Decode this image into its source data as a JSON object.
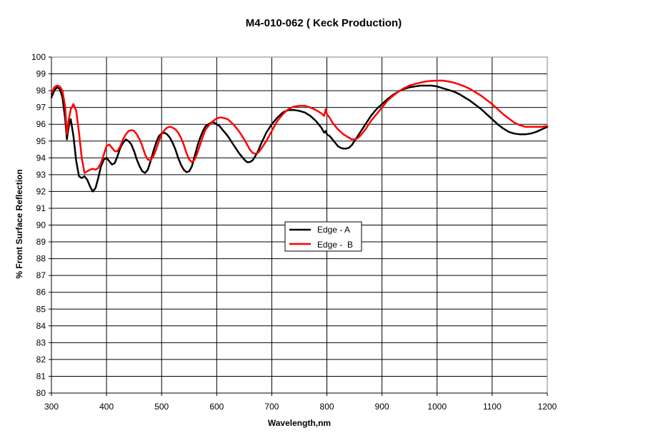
{
  "chart_data": {
    "type": "line",
    "title": "M4-010-062 ( Keck Production)",
    "xlabel": "Wavelength,nm",
    "ylabel": "% Front Surface Reflection",
    "xlim": [
      300,
      1200
    ],
    "ylim": [
      80,
      100
    ],
    "x_ticks": [
      "300",
      "400",
      "500",
      "600",
      "700",
      "800",
      "900",
      "1000",
      "1100",
      "1200"
    ],
    "y_ticks": [
      "80",
      "81",
      "82",
      "83",
      "84",
      "85",
      "86",
      "87",
      "88",
      "89",
      "90",
      "91",
      "92",
      "93",
      "94",
      "95",
      "96",
      "97",
      "98",
      "99",
      "100"
    ],
    "grid": true,
    "legend_position": "center",
    "series": [
      {
        "name": "Edge - A",
        "color": "#000000",
        "points": [
          [
            300,
            97.6
          ],
          [
            305,
            98.0
          ],
          [
            310,
            98.2
          ],
          [
            315,
            98.1
          ],
          [
            320,
            97.6
          ],
          [
            325,
            96.3
          ],
          [
            328,
            95.1
          ],
          [
            331,
            95.8
          ],
          [
            335,
            96.3
          ],
          [
            340,
            95.3
          ],
          [
            345,
            93.8
          ],
          [
            350,
            92.9
          ],
          [
            355,
            92.8
          ],
          [
            360,
            92.9
          ],
          [
            365,
            92.7
          ],
          [
            370,
            92.3
          ],
          [
            375,
            92.0
          ],
          [
            380,
            92.2
          ],
          [
            385,
            92.8
          ],
          [
            390,
            93.5
          ],
          [
            395,
            93.9
          ],
          [
            400,
            94.0
          ],
          [
            405,
            93.8
          ],
          [
            410,
            93.6
          ],
          [
            415,
            93.7
          ],
          [
            420,
            94.1
          ],
          [
            425,
            94.6
          ],
          [
            430,
            94.9
          ],
          [
            435,
            95.1
          ],
          [
            440,
            95.0
          ],
          [
            445,
            94.8
          ],
          [
            450,
            94.4
          ],
          [
            455,
            93.9
          ],
          [
            460,
            93.5
          ],
          [
            465,
            93.2
          ],
          [
            470,
            93.1
          ],
          [
            475,
            93.3
          ],
          [
            480,
            93.8
          ],
          [
            485,
            94.4
          ],
          [
            490,
            94.9
          ],
          [
            495,
            95.3
          ],
          [
            500,
            95.45
          ],
          [
            505,
            95.5
          ],
          [
            510,
            95.4
          ],
          [
            515,
            95.2
          ],
          [
            520,
            94.9
          ],
          [
            525,
            94.5
          ],
          [
            530,
            94.0
          ],
          [
            535,
            93.6
          ],
          [
            540,
            93.3
          ],
          [
            545,
            93.15
          ],
          [
            550,
            93.2
          ],
          [
            555,
            93.5
          ],
          [
            560,
            94.1
          ],
          [
            565,
            94.7
          ],
          [
            570,
            95.2
          ],
          [
            575,
            95.6
          ],
          [
            580,
            95.9
          ],
          [
            585,
            96.0
          ],
          [
            590,
            96.1
          ],
          [
            595,
            96.1
          ],
          [
            600,
            96.0
          ],
          [
            605,
            95.9
          ],
          [
            610,
            95.7
          ],
          [
            620,
            95.3
          ],
          [
            630,
            94.8
          ],
          [
            640,
            94.3
          ],
          [
            650,
            93.9
          ],
          [
            655,
            93.75
          ],
          [
            660,
            93.75
          ],
          [
            665,
            93.85
          ],
          [
            670,
            94.1
          ],
          [
            675,
            94.4
          ],
          [
            680,
            94.8
          ],
          [
            690,
            95.5
          ],
          [
            700,
            96.0
          ],
          [
            710,
            96.4
          ],
          [
            720,
            96.7
          ],
          [
            730,
            96.85
          ],
          [
            740,
            96.85
          ],
          [
            750,
            96.8
          ],
          [
            760,
            96.7
          ],
          [
            770,
            96.5
          ],
          [
            780,
            96.2
          ],
          [
            790,
            95.8
          ],
          [
            795,
            95.5
          ],
          [
            798,
            95.6
          ],
          [
            800,
            95.4
          ],
          [
            805,
            95.3
          ],
          [
            810,
            95.1
          ],
          [
            815,
            94.9
          ],
          [
            820,
            94.7
          ],
          [
            825,
            94.6
          ],
          [
            830,
            94.55
          ],
          [
            835,
            94.55
          ],
          [
            840,
            94.6
          ],
          [
            845,
            94.75
          ],
          [
            850,
            95.0
          ],
          [
            860,
            95.5
          ],
          [
            870,
            96.0
          ],
          [
            880,
            96.5
          ],
          [
            890,
            96.9
          ],
          [
            900,
            97.2
          ],
          [
            910,
            97.5
          ],
          [
            920,
            97.75
          ],
          [
            930,
            97.95
          ],
          [
            940,
            98.1
          ],
          [
            950,
            98.2
          ],
          [
            960,
            98.25
          ],
          [
            970,
            98.3
          ],
          [
            980,
            98.3
          ],
          [
            990,
            98.3
          ],
          [
            1000,
            98.25
          ],
          [
            1010,
            98.15
          ],
          [
            1020,
            98.05
          ],
          [
            1030,
            97.95
          ],
          [
            1040,
            97.8
          ],
          [
            1050,
            97.6
          ],
          [
            1060,
            97.4
          ],
          [
            1070,
            97.15
          ],
          [
            1080,
            96.9
          ],
          [
            1090,
            96.6
          ],
          [
            1100,
            96.3
          ],
          [
            1110,
            96.0
          ],
          [
            1120,
            95.75
          ],
          [
            1130,
            95.55
          ],
          [
            1140,
            95.45
          ],
          [
            1150,
            95.4
          ],
          [
            1160,
            95.4
          ],
          [
            1170,
            95.45
          ],
          [
            1180,
            95.55
          ],
          [
            1190,
            95.7
          ],
          [
            1200,
            95.85
          ]
        ]
      },
      {
        "name": "Edge -  B",
        "color": "#ff0000",
        "points": [
          [
            300,
            97.8
          ],
          [
            305,
            98.2
          ],
          [
            310,
            98.3
          ],
          [
            315,
            98.25
          ],
          [
            320,
            98.0
          ],
          [
            325,
            97.0
          ],
          [
            328,
            95.4
          ],
          [
            331,
            96.2
          ],
          [
            335,
            96.9
          ],
          [
            340,
            97.2
          ],
          [
            345,
            96.8
          ],
          [
            350,
            95.5
          ],
          [
            355,
            94.0
          ],
          [
            360,
            93.1
          ],
          [
            365,
            93.2
          ],
          [
            370,
            93.3
          ],
          [
            375,
            93.35
          ],
          [
            380,
            93.3
          ],
          [
            385,
            93.4
          ],
          [
            390,
            93.7
          ],
          [
            395,
            94.2
          ],
          [
            400,
            94.7
          ],
          [
            405,
            94.8
          ],
          [
            410,
            94.6
          ],
          [
            415,
            94.4
          ],
          [
            420,
            94.4
          ],
          [
            425,
            94.7
          ],
          [
            430,
            95.1
          ],
          [
            435,
            95.4
          ],
          [
            440,
            95.6
          ],
          [
            445,
            95.65
          ],
          [
            450,
            95.6
          ],
          [
            455,
            95.4
          ],
          [
            460,
            95.1
          ],
          [
            465,
            94.7
          ],
          [
            470,
            94.2
          ],
          [
            475,
            93.9
          ],
          [
            480,
            93.85
          ],
          [
            485,
            94.1
          ],
          [
            490,
            94.5
          ],
          [
            495,
            95.0
          ],
          [
            500,
            95.4
          ],
          [
            505,
            95.65
          ],
          [
            510,
            95.8
          ],
          [
            515,
            95.85
          ],
          [
            520,
            95.8
          ],
          [
            525,
            95.7
          ],
          [
            530,
            95.5
          ],
          [
            535,
            95.2
          ],
          [
            540,
            94.8
          ],
          [
            545,
            94.3
          ],
          [
            550,
            93.9
          ],
          [
            555,
            93.75
          ],
          [
            560,
            93.9
          ],
          [
            565,
            94.3
          ],
          [
            570,
            94.8
          ],
          [
            575,
            95.3
          ],
          [
            580,
            95.7
          ],
          [
            590,
            96.1
          ],
          [
            600,
            96.35
          ],
          [
            605,
            96.4
          ],
          [
            610,
            96.4
          ],
          [
            615,
            96.35
          ],
          [
            620,
            96.3
          ],
          [
            630,
            96.0
          ],
          [
            640,
            95.6
          ],
          [
            650,
            95.1
          ],
          [
            660,
            94.5
          ],
          [
            665,
            94.3
          ],
          [
            670,
            94.25
          ],
          [
            675,
            94.3
          ],
          [
            680,
            94.5
          ],
          [
            690,
            95.0
          ],
          [
            700,
            95.6
          ],
          [
            710,
            96.2
          ],
          [
            720,
            96.6
          ],
          [
            730,
            96.9
          ],
          [
            740,
            97.05
          ],
          [
            750,
            97.1
          ],
          [
            760,
            97.1
          ],
          [
            770,
            97.0
          ],
          [
            780,
            96.85
          ],
          [
            790,
            96.65
          ],
          [
            795,
            96.5
          ],
          [
            798,
            96.9
          ],
          [
            800,
            96.6
          ],
          [
            805,
            96.4
          ],
          [
            810,
            96.1
          ],
          [
            815,
            95.9
          ],
          [
            820,
            95.7
          ],
          [
            830,
            95.4
          ],
          [
            840,
            95.2
          ],
          [
            845,
            95.1
          ],
          [
            850,
            95.1
          ],
          [
            855,
            95.15
          ],
          [
            860,
            95.3
          ],
          [
            870,
            95.7
          ],
          [
            880,
            96.2
          ],
          [
            890,
            96.6
          ],
          [
            900,
            97.0
          ],
          [
            910,
            97.4
          ],
          [
            920,
            97.7
          ],
          [
            930,
            97.95
          ],
          [
            940,
            98.15
          ],
          [
            950,
            98.3
          ],
          [
            960,
            98.4
          ],
          [
            970,
            98.48
          ],
          [
            980,
            98.55
          ],
          [
            990,
            98.58
          ],
          [
            1000,
            98.6
          ],
          [
            1010,
            98.6
          ],
          [
            1020,
            98.55
          ],
          [
            1030,
            98.48
          ],
          [
            1040,
            98.38
          ],
          [
            1050,
            98.25
          ],
          [
            1060,
            98.1
          ],
          [
            1070,
            97.9
          ],
          [
            1080,
            97.7
          ],
          [
            1090,
            97.45
          ],
          [
            1100,
            97.2
          ],
          [
            1110,
            96.9
          ],
          [
            1120,
            96.6
          ],
          [
            1130,
            96.35
          ],
          [
            1140,
            96.1
          ],
          [
            1150,
            95.95
          ],
          [
            1160,
            95.85
          ],
          [
            1170,
            95.85
          ],
          [
            1180,
            95.85
          ],
          [
            1190,
            95.85
          ],
          [
            1200,
            95.9
          ]
        ]
      }
    ]
  }
}
